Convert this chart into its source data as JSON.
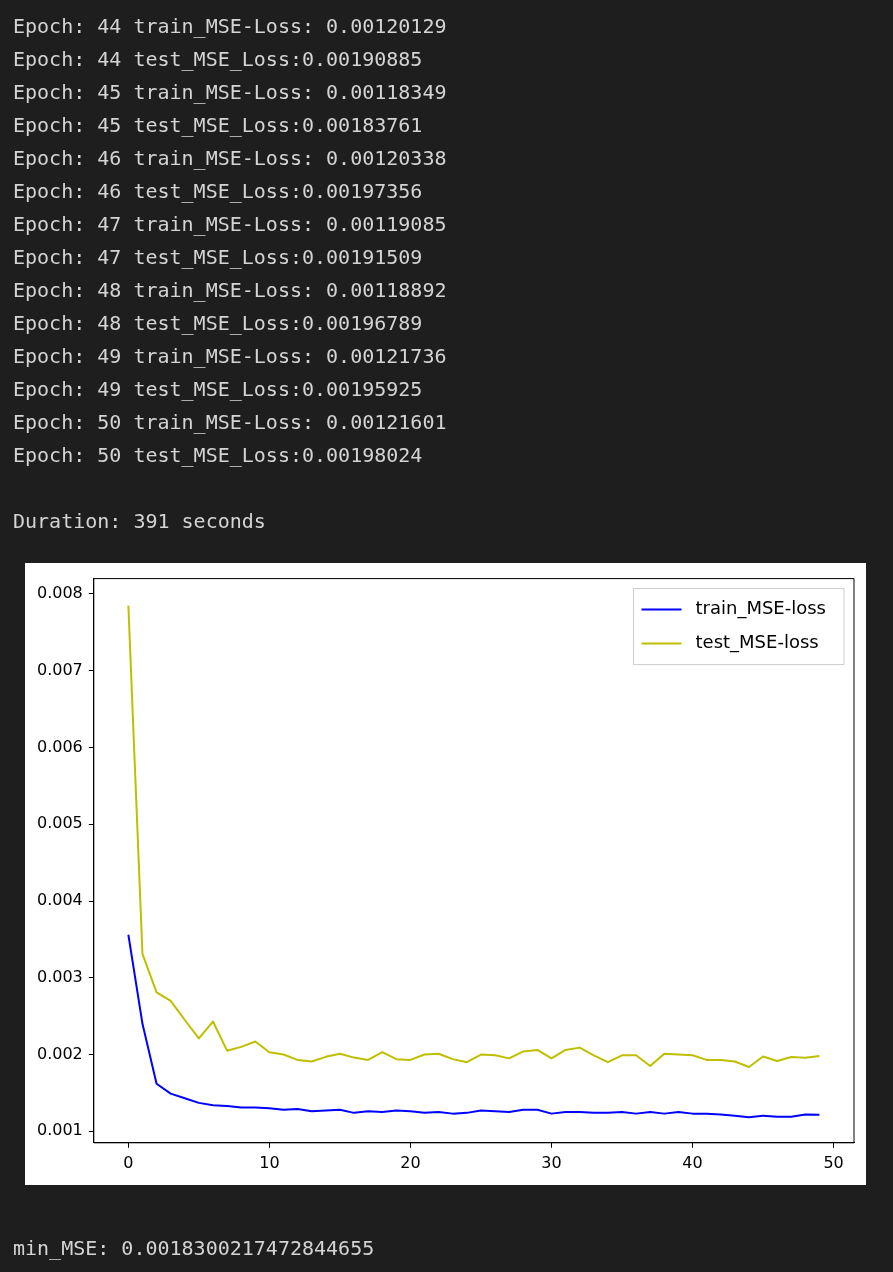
{
  "chart_data": {
    "type": "line",
    "annotations": [
      "Epoch: 44 train_MSE-Loss: 0.00120129",
      "Epoch: 44 test_MSE_Loss:0.00190885",
      "Epoch: 45 train_MSE-Loss: 0.00118349",
      "Epoch: 45 test_MSE_Loss:0.00183761",
      "Epoch: 46 train_MSE-Loss: 0.00120338",
      "Epoch: 46 test_MSE_Loss:0.00197356",
      "Epoch: 47 train_MSE-Loss: 0.00119085",
      "Epoch: 47 test_MSE_Loss:0.00191509",
      "Epoch: 48 train_MSE-Loss: 0.00118892",
      "Epoch: 48 test_MSE_Loss:0.00196789",
      "Epoch: 49 train_MSE-Loss: 0.00121736",
      "Epoch: 49 test_MSE_Loss:0.00195925",
      "Epoch: 50 train_MSE-Loss: 0.00121601",
      "Epoch: 50 test_MSE_Loss:0.00198024",
      "Duration: 391 seconds",
      "min_MSE: 0.0018300217472844655"
    ],
    "x": [
      0,
      1,
      2,
      3,
      4,
      5,
      6,
      7,
      8,
      9,
      10,
      11,
      12,
      13,
      14,
      15,
      16,
      17,
      18,
      19,
      20,
      21,
      22,
      23,
      24,
      25,
      26,
      27,
      28,
      29,
      30,
      31,
      32,
      33,
      34,
      35,
      36,
      37,
      38,
      39,
      40,
      41,
      42,
      43,
      44,
      45,
      46,
      47,
      48,
      49
    ],
    "series": [
      {
        "name": "train_MSE-loss",
        "color": "#0000ff",
        "values": [
          0.00356,
          0.0024,
          0.00162,
          0.00149,
          0.00143,
          0.00137,
          0.00134,
          0.00133,
          0.00131,
          0.00131,
          0.0013,
          0.00128,
          0.00129,
          0.00126,
          0.00127,
          0.00128,
          0.00124,
          0.00126,
          0.00125,
          0.00127,
          0.00126,
          0.00124,
          0.00125,
          0.00123,
          0.00124,
          0.00127,
          0.00126,
          0.00125,
          0.00128,
          0.00128,
          0.00123,
          0.00125,
          0.00125,
          0.00124,
          0.00124,
          0.00125,
          0.00123,
          0.00125,
          0.00123,
          0.00125,
          0.00123,
          0.00123,
          0.00122,
          0.00120129,
          0.00118349,
          0.00120338,
          0.00119085,
          0.00118892,
          0.00121736,
          0.00121601
        ]
      },
      {
        "name": "test_MSE-loss",
        "color": "#bfbf00",
        "values": [
          0.00785,
          0.00331,
          0.00281,
          0.0027,
          0.00245,
          0.00221,
          0.00243,
          0.00205,
          0.0021,
          0.00217,
          0.00203,
          0.002,
          0.00193,
          0.00191,
          0.00197,
          0.00201,
          0.00196,
          0.00193,
          0.00203,
          0.00194,
          0.00193,
          0.002,
          0.00201,
          0.00194,
          0.0019,
          0.002,
          0.00199,
          0.00195,
          0.00204,
          0.00206,
          0.00195,
          0.00206,
          0.00209,
          0.00199,
          0.0019,
          0.00199,
          0.00199,
          0.00185,
          0.00201,
          0.002,
          0.00199,
          0.00193,
          0.00193,
          0.00190885,
          0.00183761,
          0.00197356,
          0.00191509,
          0.00196789,
          0.00195925,
          0.00198024
        ]
      }
    ],
    "xlim": [
      -2.45,
      51.45
    ],
    "xticks": [
      0,
      10,
      20,
      30,
      40,
      50
    ],
    "ylim": [
      0.00085,
      0.0082
    ],
    "yticks": [
      0.001,
      0.002,
      0.003,
      0.004,
      0.005,
      0.006,
      0.007,
      0.008
    ],
    "legend": "top right",
    "grid": false,
    "marker": "none",
    "line_style": "solid"
  }
}
